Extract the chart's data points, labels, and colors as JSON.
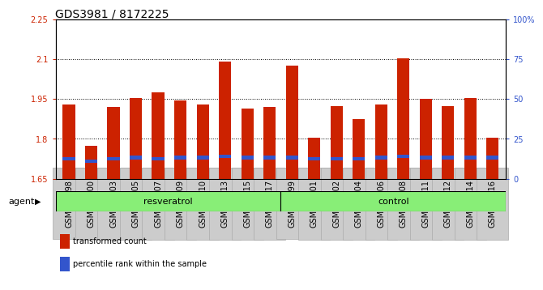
{
  "title": "GDS3981 / 8172225",
  "categories": [
    "GSM801198",
    "GSM801200",
    "GSM801203",
    "GSM801205",
    "GSM801207",
    "GSM801209",
    "GSM801210",
    "GSM801213",
    "GSM801215",
    "GSM801217",
    "GSM801199",
    "GSM801201",
    "GSM801202",
    "GSM801204",
    "GSM801206",
    "GSM801208",
    "GSM801211",
    "GSM801212",
    "GSM801214",
    "GSM801216"
  ],
  "bar_values": [
    1.93,
    1.775,
    1.92,
    1.955,
    1.975,
    1.945,
    1.93,
    2.09,
    1.915,
    1.92,
    2.075,
    1.805,
    1.925,
    1.875,
    1.93,
    2.105,
    1.95,
    1.925,
    1.955,
    1.805
  ],
  "blue_values": [
    1.725,
    1.715,
    1.725,
    1.73,
    1.725,
    1.73,
    1.73,
    1.735,
    1.73,
    1.73,
    1.73,
    1.725,
    1.725,
    1.725,
    1.73,
    1.735,
    1.73,
    1.73,
    1.73,
    1.73
  ],
  "bar_color": "#cc2200",
  "blue_color": "#3355cc",
  "ylim_left": [
    1.65,
    2.25
  ],
  "ylim_right": [
    0,
    100
  ],
  "yticks_left": [
    1.65,
    1.8,
    1.95,
    2.1,
    2.25
  ],
  "ytick_labels_left": [
    "1.65",
    "1.8",
    "1.95",
    "2.1",
    "2.25"
  ],
  "yticks_right": [
    0,
    25,
    50,
    75,
    100
  ],
  "ytick_labels_right": [
    "0",
    "25",
    "50",
    "75",
    "100%"
  ],
  "resv_group": {
    "label": "resveratrol",
    "start": 0,
    "end": 10
  },
  "ctrl_group": {
    "label": "control",
    "start": 10,
    "end": 20
  },
  "group_color": "#88ee77",
  "agent_label": "agent",
  "legend_items": [
    {
      "color": "#cc2200",
      "label": "transformed count"
    },
    {
      "color": "#3355cc",
      "label": "percentile rank within the sample"
    }
  ],
  "bar_width": 0.55,
  "title_fontsize": 10,
  "tick_fontsize": 7,
  "label_fontsize": 8
}
